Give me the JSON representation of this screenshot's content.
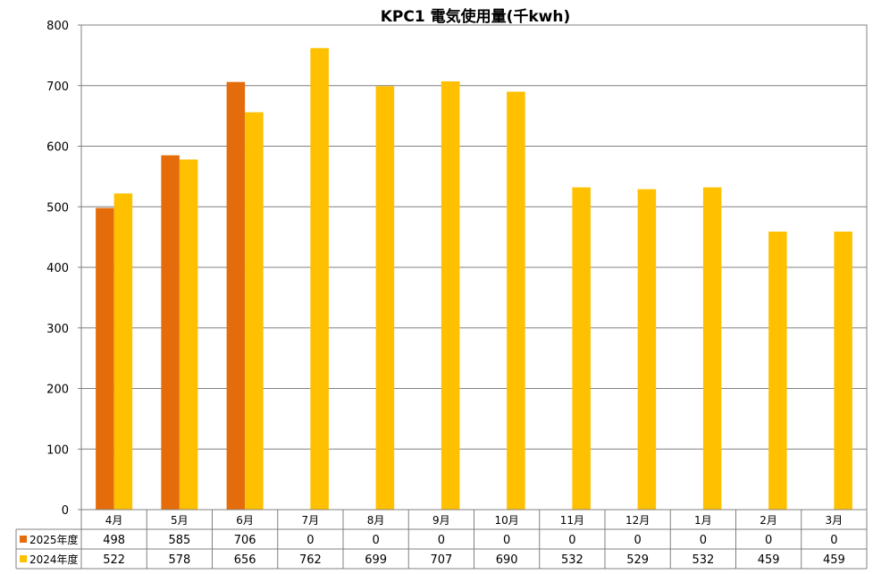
{
  "chart_data": {
    "type": "bar",
    "title": "KPC1 電気使用量(千kwh)",
    "categories": [
      "4月",
      "5月",
      "6月",
      "7月",
      "8月",
      "9月",
      "10月",
      "11月",
      "12月",
      "1月",
      "2月",
      "3月"
    ],
    "series": [
      {
        "name": "2025年度",
        "color": "#E46C0A",
        "values": [
          498,
          585,
          706,
          0,
          0,
          0,
          0,
          0,
          0,
          0,
          0,
          0
        ]
      },
      {
        "name": "2024年度",
        "color": "#FFC000",
        "values": [
          522,
          578,
          656,
          762,
          699,
          707,
          690,
          532,
          529,
          532,
          459,
          459
        ]
      }
    ],
    "ylim": [
      0,
      800
    ],
    "yticks": [
      0,
      100,
      200,
      300,
      400,
      500,
      600,
      700,
      800
    ],
    "grid": true,
    "legend": "data-table"
  }
}
